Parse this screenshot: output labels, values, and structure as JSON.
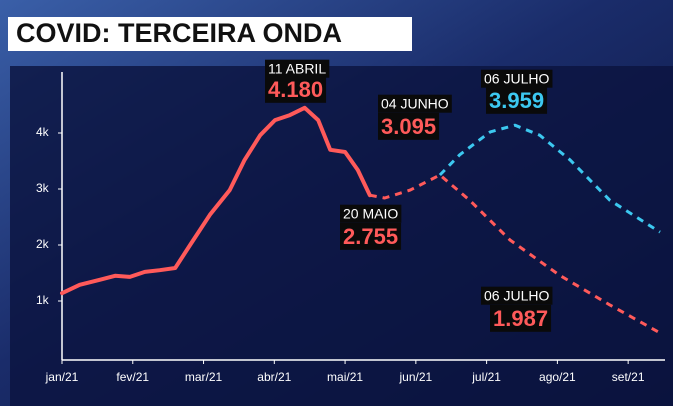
{
  "chart_data": {
    "type": "line",
    "title": "COVID: TERCEIRA ONDA",
    "xlim": [
      0,
      8.45
    ],
    "xticks": [
      {
        "value": 0,
        "label": "jan/21"
      },
      {
        "value": 1,
        "label": "fev/21"
      },
      {
        "value": 2,
        "label": "mar/21"
      },
      {
        "value": 3,
        "label": "abr/21"
      },
      {
        "value": 4,
        "label": "mai/21"
      },
      {
        "value": 5,
        "label": "jun/21"
      },
      {
        "value": 6,
        "label": "jul/21"
      },
      {
        "value": 7,
        "label": "ago/21"
      },
      {
        "value": 8,
        "label": "set/21"
      }
    ],
    "ylim": [
      0,
      5000
    ],
    "yticks": [
      {
        "value": 1000,
        "label": "1k"
      },
      {
        "value": 2000,
        "label": "2k"
      },
      {
        "value": 3000,
        "label": "3k"
      },
      {
        "value": 4000,
        "label": "4k"
      }
    ],
    "series": [
      {
        "color": "#ff5a5a",
        "dashed": false,
        "x": [
          0,
          0.25,
          0.54,
          0.75,
          0.96,
          1.17,
          1.38,
          1.6,
          1.81,
          2.09,
          2.37,
          2.58,
          2.8,
          3.01,
          3.22,
          3.43,
          3.62,
          3.79,
          4.0,
          4.18,
          4.35
        ],
        "values": [
          1140,
          1290,
          1380,
          1450,
          1430,
          1520,
          1550,
          1590,
          2000,
          2540,
          2980,
          3520,
          3960,
          4230,
          4320,
          4450,
          4230,
          3700,
          3660,
          3340,
          2890
        ]
      },
      {
        "color": "#ff5a5a",
        "dashed": true,
        "x": [
          4.35,
          4.56,
          4.92,
          5.34,
          5.76,
          6.33,
          7.03,
          7.74,
          8.45
        ],
        "values": [
          2890,
          2840,
          2980,
          3250,
          2800,
          2090,
          1460,
          930,
          430
        ]
      },
      {
        "color": "#3cc8f0",
        "dashed": true,
        "x": [
          5.34,
          5.62,
          6.05,
          6.4,
          6.75,
          7.18,
          7.74,
          8.45
        ],
        "values": [
          3250,
          3610,
          4020,
          4140,
          3960,
          3520,
          2800,
          2230
        ]
      }
    ],
    "annotations": [
      {
        "date": "11 ABRIL",
        "value": "4.180",
        "color": "#ff5a5a"
      },
      {
        "date": "04 JUNHO",
        "value": "3.095",
        "color": "#ff5a5a"
      },
      {
        "date": "06 JULHO",
        "value": "3.959",
        "color": "#3cc8f0"
      },
      {
        "date": "20 MAIO",
        "value": "2.755",
        "color": "#ff5a5a"
      },
      {
        "date": "06 JULHO",
        "value": "1.987",
        "color": "#ff5a5a"
      }
    ]
  }
}
